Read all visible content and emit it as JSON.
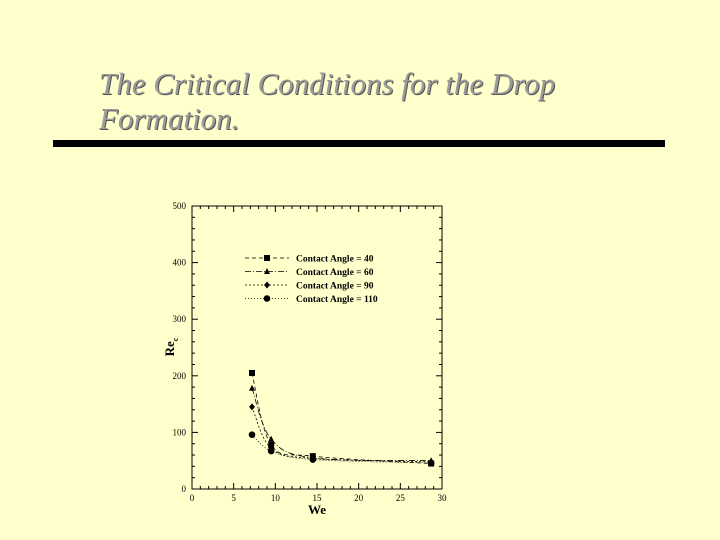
{
  "slide": {
    "title_line1": "The Critical Conditions for the Drop",
    "title_line2": "Formation."
  },
  "colors": {
    "background": "#ffffcc",
    "title_text": "#9b9b9b",
    "rule": "#000000",
    "chart_ink": "#000000"
  },
  "chart_data": {
    "type": "line",
    "title": "",
    "xlabel": "We",
    "ylabel": "Re",
    "ylabel_subscript": "c",
    "xlim": [
      0,
      30
    ],
    "ylim": [
      0,
      500
    ],
    "xticks": [
      0,
      5,
      10,
      15,
      20,
      25,
      30
    ],
    "yticks": [
      0,
      100,
      200,
      300,
      400,
      500
    ],
    "grid": false,
    "legend_position": "top-right",
    "series": [
      {
        "name": "Contact Angle = 40",
        "marker": "square",
        "dash": "4 3",
        "points": [
          [
            7.2,
            205
          ],
          [
            9.5,
            78
          ],
          [
            14.5,
            58
          ],
          [
            28.7,
            45
          ]
        ]
      },
      {
        "name": "Contact Angle = 60",
        "marker": "triangle",
        "dash": "6 2 1 2",
        "points": [
          [
            7.2,
            178
          ],
          [
            9.5,
            88
          ],
          [
            14.5,
            55
          ],
          [
            28.7,
            50
          ]
        ]
      },
      {
        "name": "Contact Angle = 90",
        "marker": "diamond",
        "dash": "2 2",
        "points": [
          [
            7.2,
            145
          ],
          [
            9.5,
            72
          ],
          [
            14.5,
            54
          ],
          [
            28.7,
            48
          ]
        ]
      },
      {
        "name": "Contact Angle = 110",
        "marker": "circle",
        "dash": "1 2",
        "points": [
          [
            7.2,
            96
          ],
          [
            9.5,
            67
          ],
          [
            14.5,
            52
          ],
          [
            28.7,
            46
          ]
        ]
      }
    ]
  }
}
